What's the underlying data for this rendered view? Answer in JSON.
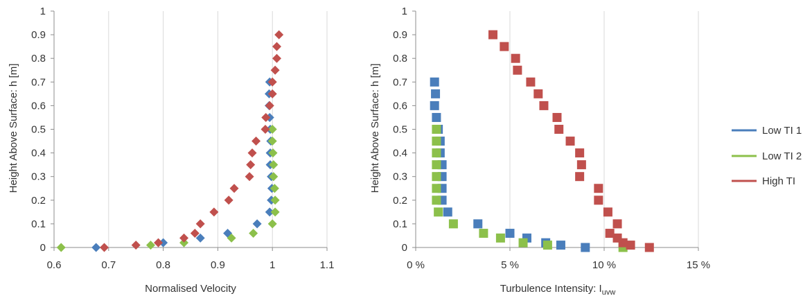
{
  "colors": {
    "low_ti_1": "#4a7ebb",
    "low_ti_2": "#8cc04b",
    "high_ti": "#c0504d",
    "grid": "#d9d9d9",
    "axis": "#8c8c8c"
  },
  "legend": {
    "placement": "right",
    "items": [
      {
        "label": "Low TI 1",
        "color": "#4a7ebb"
      },
      {
        "label": "Low TI 2",
        "color": "#8cc04b"
      },
      {
        "label": "High TI",
        "color": "#c0504d"
      }
    ]
  },
  "chart_data": [
    {
      "type": "scatter",
      "marker": "diamond",
      "xlabel": "Normalised Velocity",
      "ylabel": "Height Above Surface: h [m]",
      "xlim": [
        0.6,
        1.1
      ],
      "ylim": [
        0,
        1
      ],
      "xticks": [
        "0.6",
        "0.7",
        "0.8",
        "0.9",
        "1",
        "1.1"
      ],
      "yticks": [
        "0",
        "0.1",
        "0.2",
        "0.3",
        "0.4",
        "0.5",
        "0.6",
        "0.7",
        "0.8",
        "0.9",
        "1"
      ],
      "grid": "vertical",
      "series": [
        {
          "name": "Low TI 1",
          "color": "#4a7ebb",
          "points": [
            [
              0.677,
              0.0
            ],
            [
              0.8,
              0.02
            ],
            [
              0.868,
              0.04
            ],
            [
              0.918,
              0.06
            ],
            [
              0.972,
              0.1
            ],
            [
              0.995,
              0.15
            ],
            [
              0.998,
              0.2
            ],
            [
              0.999,
              0.25
            ],
            [
              0.998,
              0.3
            ],
            [
              0.996,
              0.35
            ],
            [
              0.996,
              0.4
            ],
            [
              0.997,
              0.45
            ],
            [
              0.996,
              0.5
            ],
            [
              0.995,
              0.55
            ],
            [
              0.994,
              0.6
            ],
            [
              0.994,
              0.65
            ],
            [
              0.995,
              0.7
            ]
          ]
        },
        {
          "name": "Low TI 2",
          "color": "#8cc04b",
          "points": [
            [
              0.613,
              0.0
            ],
            [
              0.777,
              0.01
            ],
            [
              0.838,
              0.02
            ],
            [
              0.925,
              0.04
            ],
            [
              0.965,
              0.06
            ],
            [
              1.0,
              0.1
            ],
            [
              1.005,
              0.15
            ],
            [
              1.005,
              0.2
            ],
            [
              1.004,
              0.25
            ],
            [
              1.002,
              0.3
            ],
            [
              1.002,
              0.35
            ],
            [
              1.001,
              0.4
            ],
            [
              1.0,
              0.45
            ],
            [
              1.0,
              0.5
            ]
          ]
        },
        {
          "name": "High TI",
          "color": "#c0504d",
          "points": [
            [
              0.692,
              0.0
            ],
            [
              0.75,
              0.01
            ],
            [
              0.791,
              0.02
            ],
            [
              0.838,
              0.04
            ],
            [
              0.858,
              0.06
            ],
            [
              0.868,
              0.1
            ],
            [
              0.893,
              0.15
            ],
            [
              0.92,
              0.2
            ],
            [
              0.93,
              0.25
            ],
            [
              0.958,
              0.3
            ],
            [
              0.96,
              0.35
            ],
            [
              0.963,
              0.4
            ],
            [
              0.97,
              0.45
            ],
            [
              0.987,
              0.5
            ],
            [
              0.988,
              0.55
            ],
            [
              0.995,
              0.6
            ],
            [
              1.0,
              0.65
            ],
            [
              1.0,
              0.7
            ],
            [
              1.005,
              0.75
            ],
            [
              1.008,
              0.8
            ],
            [
              1.008,
              0.85
            ],
            [
              1.012,
              0.9
            ]
          ]
        }
      ]
    },
    {
      "type": "scatter",
      "marker": "square",
      "xlabel": "Turbulence Intensity: I",
      "xlabel_subscript": "uvw",
      "ylabel": "Height Above Surface: h [m]",
      "xlim": [
        0,
        15
      ],
      "ylim": [
        0,
        1
      ],
      "xticks": [
        "0 %",
        "5 %",
        "10 %",
        "15 %"
      ],
      "yticks": [
        "0",
        "0.1",
        "0.2",
        "0.3",
        "0.4",
        "0.5",
        "0.6",
        "0.7",
        "0.8",
        "0.9",
        "1"
      ],
      "grid": "vertical",
      "series": [
        {
          "name": "Low TI 1",
          "color": "#4a7ebb",
          "points": [
            [
              9.0,
              0.0
            ],
            [
              7.7,
              0.01
            ],
            [
              6.9,
              0.02
            ],
            [
              5.9,
              0.04
            ],
            [
              5.0,
              0.06
            ],
            [
              3.3,
              0.1
            ],
            [
              1.7,
              0.15
            ],
            [
              1.4,
              0.2
            ],
            [
              1.4,
              0.25
            ],
            [
              1.4,
              0.3
            ],
            [
              1.4,
              0.35
            ],
            [
              1.3,
              0.4
            ],
            [
              1.3,
              0.45
            ],
            [
              1.2,
              0.5
            ],
            [
              1.1,
              0.55
            ],
            [
              1.0,
              0.6
            ],
            [
              1.05,
              0.65
            ],
            [
              1.0,
              0.7
            ]
          ]
        },
        {
          "name": "Low TI 2",
          "color": "#8cc04b",
          "points": [
            [
              11.0,
              0.0
            ],
            [
              7.0,
              0.01
            ],
            [
              5.7,
              0.02
            ],
            [
              4.5,
              0.04
            ],
            [
              3.6,
              0.06
            ],
            [
              2.0,
              0.1
            ],
            [
              1.2,
              0.15
            ],
            [
              1.1,
              0.2
            ],
            [
              1.1,
              0.25
            ],
            [
              1.1,
              0.3
            ],
            [
              1.1,
              0.35
            ],
            [
              1.1,
              0.4
            ],
            [
              1.1,
              0.45
            ],
            [
              1.1,
              0.5
            ]
          ]
        },
        {
          "name": "High TI",
          "color": "#c0504d",
          "points": [
            [
              12.4,
              0.0
            ],
            [
              11.4,
              0.01
            ],
            [
              11.0,
              0.02
            ],
            [
              10.7,
              0.04
            ],
            [
              10.3,
              0.06
            ],
            [
              10.7,
              0.1
            ],
            [
              10.2,
              0.15
            ],
            [
              9.7,
              0.2
            ],
            [
              9.7,
              0.25
            ],
            [
              8.7,
              0.3
            ],
            [
              8.8,
              0.35
            ],
            [
              8.7,
              0.4
            ],
            [
              8.2,
              0.45
            ],
            [
              7.6,
              0.5
            ],
            [
              7.5,
              0.55
            ],
            [
              6.8,
              0.6
            ],
            [
              6.5,
              0.65
            ],
            [
              6.1,
              0.7
            ],
            [
              5.4,
              0.75
            ],
            [
              5.3,
              0.8
            ],
            [
              4.7,
              0.85
            ],
            [
              4.1,
              0.9
            ]
          ]
        }
      ]
    }
  ]
}
